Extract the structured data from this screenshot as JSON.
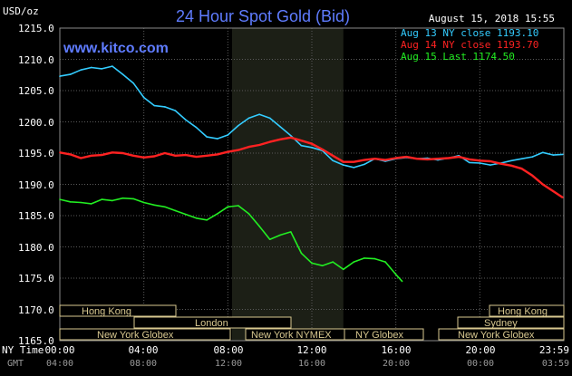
{
  "header": {
    "unit_label": "USD/oz",
    "title": "24 Hour Spot Gold (Bid)",
    "timestamp": "August 15, 2018 15:55",
    "watermark": "www.kitco.com"
  },
  "legend": [
    {
      "label": "Aug 13 NY close 1193.10",
      "color": "#33ccff"
    },
    {
      "label": "Aug 14 NY close 1193.70",
      "color": "#ff2222"
    },
    {
      "label": "Aug 15 Last 1174.50",
      "color": "#22ee22"
    }
  ],
  "axis": {
    "ny_time_label": "NY Time",
    "gmt_label": "GMT",
    "ny_ticks": [
      "00:00",
      "04:00",
      "08:00",
      "12:00",
      "16:00",
      "20:00",
      "23:59"
    ],
    "gmt_ticks": [
      "04:00",
      "08:00",
      "12:00",
      "16:00",
      "20:00",
      "00:00",
      "03:59"
    ],
    "y_ticks": [
      "1215.0",
      "1210.0",
      "1205.0",
      "1200.0",
      "1195.0",
      "1190.0",
      "1185.0",
      "1180.0",
      "1175.0",
      "1170.0",
      "1165.0"
    ]
  },
  "sessions": [
    {
      "label": "Hong Kong"
    },
    {
      "label": "London"
    },
    {
      "label": "New York Globex"
    },
    {
      "label": "New York NYMEX"
    },
    {
      "label": "NY Globex"
    },
    {
      "label": "Hong Kong"
    },
    {
      "label": "Sydney"
    },
    {
      "label": "New York Globex"
    }
  ],
  "colors": {
    "background": "#000000",
    "grid": "#5a5a5a",
    "highlight_band": "#1c1f16",
    "session_border": "#d8c890",
    "title": "#5f7cff"
  },
  "chart_data": {
    "type": "line",
    "ylim": [
      1165,
      1215
    ],
    "xlim_hours": [
      0,
      24
    ],
    "x_unit": "hours (NY time)",
    "highlight_hours": [
      8.2,
      13.5
    ],
    "grid": true,
    "series": [
      {
        "name": "Aug 13 NY close 1193.10",
        "color": "#33ccff",
        "x": [
          0,
          0.5,
          1,
          1.5,
          2,
          2.5,
          3,
          3.5,
          4,
          4.5,
          5,
          5.5,
          6,
          6.5,
          7,
          7.5,
          8,
          8.5,
          9,
          9.5,
          10,
          10.5,
          11,
          11.5,
          12,
          12.5,
          13,
          13.5,
          14,
          14.5,
          15,
          15.5,
          16,
          16.5,
          17,
          17.5,
          18,
          18.5,
          19,
          19.5,
          20,
          20.5,
          21,
          21.5,
          22,
          22.5,
          23,
          23.5,
          23.95
        ],
        "y": [
          1207.3,
          1207.6,
          1208.3,
          1208.7,
          1208.5,
          1208.9,
          1207.6,
          1206.2,
          1203.9,
          1202.6,
          1202.4,
          1201.8,
          1200.3,
          1199.1,
          1197.6,
          1197.3,
          1197.9,
          1199.4,
          1200.6,
          1201.2,
          1200.6,
          1199.2,
          1197.8,
          1196.2,
          1195.9,
          1195.4,
          1193.8,
          1193.1,
          1192.7,
          1193.2,
          1194.1,
          1193.7,
          1194.1,
          1194.3,
          1194.1,
          1194.2,
          1193.9,
          1194.2,
          1194.6,
          1193.5,
          1193.4,
          1193.1,
          1193.4,
          1193.8,
          1194.1,
          1194.4,
          1195.1,
          1194.7,
          1194.8
        ]
      },
      {
        "name": "Aug 14 NY close 1193.70",
        "color": "#ff2222",
        "x": [
          0,
          0.5,
          1,
          1.5,
          2,
          2.5,
          3,
          3.5,
          4,
          4.5,
          5,
          5.5,
          6,
          6.5,
          7,
          7.5,
          8,
          8.5,
          9,
          9.5,
          10,
          10.5,
          11,
          11.5,
          12,
          12.5,
          13,
          13.5,
          14,
          14.5,
          15,
          15.5,
          16,
          16.5,
          17,
          17.5,
          18,
          18.5,
          19,
          19.5,
          20,
          20.5,
          21,
          21.5,
          22,
          22.5,
          23,
          23.5,
          23.95
        ],
        "y": [
          1195.1,
          1194.8,
          1194.2,
          1194.6,
          1194.7,
          1195.1,
          1195.0,
          1194.6,
          1194.3,
          1194.5,
          1195.0,
          1194.6,
          1194.7,
          1194.4,
          1194.6,
          1194.8,
          1195.2,
          1195.5,
          1196.0,
          1196.3,
          1196.8,
          1197.2,
          1197.5,
          1197.0,
          1196.5,
          1195.6,
          1194.6,
          1193.6,
          1193.6,
          1193.9,
          1194.1,
          1193.9,
          1194.2,
          1194.4,
          1194.1,
          1194.0,
          1194.1,
          1194.2,
          1194.4,
          1194.0,
          1193.8,
          1193.7,
          1193.3,
          1193.0,
          1192.5,
          1191.4,
          1190.0,
          1188.9,
          1187.9
        ]
      },
      {
        "name": "Aug 15 Last 1174.50",
        "color": "#22ee22",
        "x": [
          0,
          0.5,
          1,
          1.5,
          2,
          2.5,
          3,
          3.5,
          4,
          4.5,
          5,
          5.5,
          6,
          6.5,
          7,
          7.5,
          8,
          8.5,
          9,
          9.5,
          10,
          10.5,
          11,
          11.5,
          12,
          12.5,
          13,
          13.5,
          14,
          14.5,
          15,
          15.5,
          16,
          16.3
        ],
        "y": [
          1187.6,
          1187.2,
          1187.1,
          1186.9,
          1187.6,
          1187.4,
          1187.8,
          1187.7,
          1187.1,
          1186.7,
          1186.4,
          1185.8,
          1185.2,
          1184.6,
          1184.3,
          1185.3,
          1186.4,
          1186.6,
          1185.3,
          1183.3,
          1181.2,
          1181.9,
          1182.4,
          1179.0,
          1177.4,
          1177.0,
          1177.6,
          1176.4,
          1177.6,
          1178.2,
          1178.1,
          1177.6,
          1175.6,
          1174.5
        ]
      }
    ]
  }
}
